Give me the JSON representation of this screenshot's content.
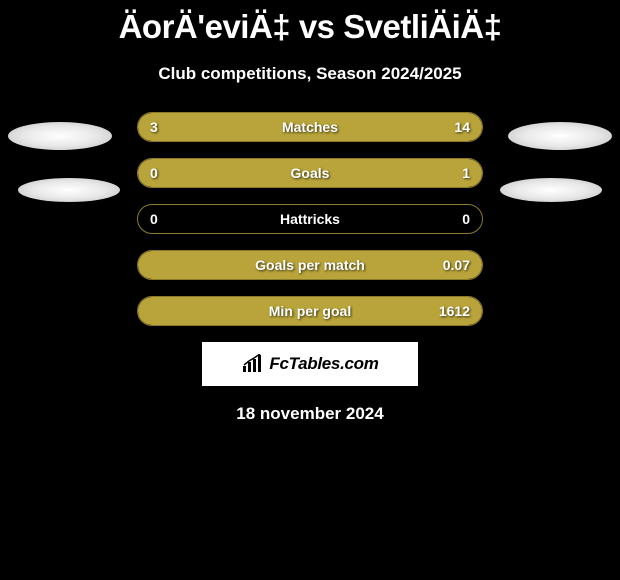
{
  "page_title": "ÄorÄ'eviÄ‡ vs SvetliÄiÄ‡",
  "subtitle": "Club competitions, Season 2024/2025",
  "date": "18 november 2024",
  "branding": {
    "text": "FcTables.com"
  },
  "colors": {
    "background": "#000000",
    "bar_fill": "#b8a43a",
    "bar_border": "#8b7a2a",
    "text": "#ffffff"
  },
  "stats": [
    {
      "label": "Matches",
      "left_value": "3",
      "right_value": "14",
      "left_pct": 17.6,
      "right_pct": 82.4
    },
    {
      "label": "Goals",
      "left_value": "0",
      "right_value": "1",
      "left_pct": 0,
      "right_pct": 100
    },
    {
      "label": "Hattricks",
      "left_value": "0",
      "right_value": "0",
      "left_pct": 0,
      "right_pct": 0
    },
    {
      "label": "Goals per match",
      "left_value": "",
      "right_value": "0.07",
      "left_pct": 0,
      "right_pct": 100
    },
    {
      "label": "Min per goal",
      "left_value": "",
      "right_value": "1612",
      "left_pct": 0,
      "right_pct": 100
    }
  ]
}
